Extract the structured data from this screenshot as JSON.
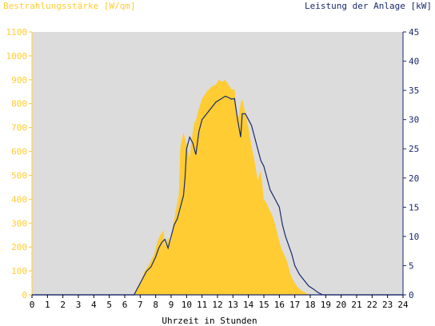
{
  "chart_data": {
    "type": "area",
    "left_axis_label": "Bestrahlungsstärke [W/qm]",
    "right_axis_label": "Leistung der Anlage [kW]",
    "xlabel": "Uhrzeit in Stunden",
    "xlim": [
      0,
      24
    ],
    "ylim_left": [
      0,
      1100
    ],
    "ylim_right": [
      0,
      45
    ],
    "x_ticks": [
      "0",
      "1",
      "2",
      "3",
      "4",
      "5",
      "6",
      "7",
      "8",
      "9",
      "10",
      "11",
      "12",
      "13",
      "14",
      "15",
      "16",
      "17",
      "18",
      "19",
      "20",
      "21",
      "22",
      "23",
      "24"
    ],
    "y_left_ticks": [
      "0",
      "100",
      "200",
      "300",
      "400",
      "500",
      "600",
      "700",
      "800",
      "900",
      "1000",
      "1100"
    ],
    "y_right_ticks": [
      "0",
      "5",
      "10",
      "15",
      "20",
      "25",
      "30",
      "35",
      "40",
      "45"
    ],
    "grid": false,
    "colors": {
      "irradiance": "#ffcc33",
      "power": "#1a2a6c",
      "plot_bg": "#dcdcdc",
      "left_axis": "#ffcc33",
      "right_axis": "#1a2a6c"
    },
    "series": [
      {
        "name": "Bestrahlungsstärke [W/qm]",
        "axis": "left",
        "x": [
          0,
          6.5,
          6.7,
          7.0,
          7.3,
          7.6,
          7.9,
          8.1,
          8.3,
          8.5,
          8.6,
          8.8,
          9.0,
          9.1,
          9.3,
          9.5,
          9.6,
          9.8,
          10.0,
          10.2,
          10.3,
          10.5,
          10.6,
          10.8,
          11.0,
          11.3,
          11.6,
          11.9,
          12.1,
          12.3,
          12.5,
          12.7,
          12.9,
          13.1,
          13.3,
          13.5,
          13.6,
          13.8,
          14.0,
          14.2,
          14.4,
          14.6,
          14.8,
          15.0,
          15.2,
          15.4,
          15.5,
          15.7,
          15.9,
          16.1,
          16.3,
          16.5,
          16.7,
          16.9,
          17.2,
          17.5,
          17.8,
          18.1,
          18.4,
          18.7,
          18.9,
          19.0,
          24
        ],
        "values": [
          0,
          0,
          10,
          50,
          100,
          130,
          170,
          220,
          250,
          270,
          200,
          240,
          220,
          280,
          350,
          420,
          620,
          680,
          630,
          570,
          640,
          720,
          730,
          780,
          820,
          850,
          870,
          880,
          900,
          890,
          900,
          880,
          860,
          860,
          720,
          800,
          820,
          760,
          700,
          620,
          560,
          480,
          520,
          400,
          380,
          350,
          340,
          300,
          250,
          200,
          170,
          140,
          90,
          60,
          30,
          15,
          5,
          0,
          0,
          0,
          0,
          0,
          0
        ]
      },
      {
        "name": "Leistung der Anlage [kW]",
        "axis": "right",
        "x": [
          0,
          6.6,
          6.8,
          7.1,
          7.4,
          7.7,
          8.0,
          8.2,
          8.4,
          8.6,
          8.8,
          9.0,
          9.2,
          9.4,
          9.6,
          9.8,
          9.9,
          10.0,
          10.2,
          10.4,
          10.6,
          10.8,
          11.0,
          11.3,
          11.6,
          11.9,
          12.2,
          12.5,
          12.7,
          12.9,
          13.1,
          13.3,
          13.5,
          13.6,
          13.8,
          14.0,
          14.2,
          14.4,
          14.6,
          14.8,
          15.0,
          15.2,
          15.4,
          15.6,
          15.8,
          16.0,
          16.2,
          16.4,
          16.6,
          16.8,
          17.0,
          17.3,
          17.6,
          17.9,
          18.2,
          18.5,
          18.8,
          19.0,
          24
        ],
        "values": [
          0,
          0,
          1,
          2.5,
          4,
          4.8,
          6.5,
          8,
          9,
          9.5,
          8,
          10,
          12,
          13,
          15,
          17,
          20,
          25,
          27,
          26,
          24,
          28,
          30,
          31,
          32,
          33,
          33.5,
          34,
          33.8,
          33.5,
          33.6,
          30,
          27,
          31,
          31,
          30,
          29,
          27,
          25,
          23,
          22,
          20,
          18,
          17,
          16,
          15,
          12,
          10,
          8.5,
          7,
          5,
          3.5,
          2.5,
          1.5,
          1,
          0.4,
          0,
          0,
          0
        ]
      }
    ]
  }
}
